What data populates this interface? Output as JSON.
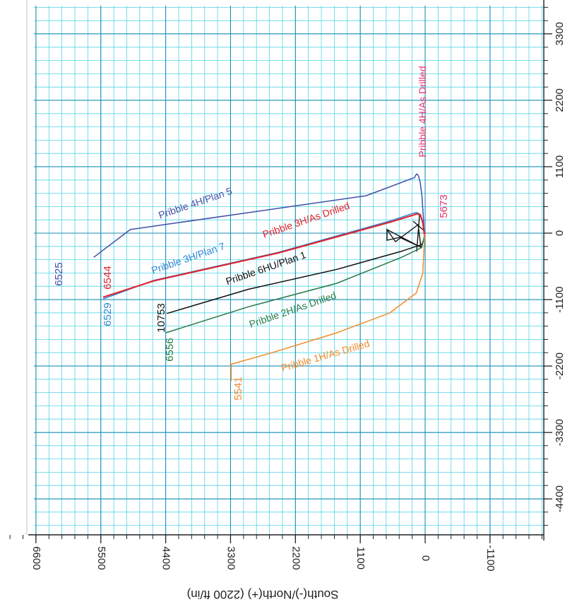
{
  "chart_data": {
    "type": "line",
    "title": "",
    "xlabel": "",
    "ylabel": "South(-)/North(+) (2200 ft/in)",
    "orientation": "rotated",
    "grid": true,
    "colors": {
      "grid_minor": "#54d3e6",
      "grid_major": "#1a8fb7",
      "axis": "#222222"
    },
    "right_axis": {
      "ticks": [
        3300,
        2200,
        1100,
        0,
        -1100,
        -2200,
        -3300,
        -4400
      ]
    },
    "bottom_axis": {
      "ticks": [
        6600,
        5500,
        4400,
        3300,
        2200,
        1100,
        0,
        -1100
      ]
    },
    "series": [
      {
        "name": "Pribble 4H/Plan 5",
        "color": "#3f4fa8",
        "points": [
          [
            6,
            -40
          ],
          [
            14,
            -10
          ],
          [
            30,
            250
          ],
          [
            55,
            620
          ],
          [
            85,
            850
          ],
          [
            115,
            950
          ],
          [
            140,
            980
          ],
          [
            160,
            960
          ],
          [
            180,
            920
          ],
          [
            1000,
            620
          ],
          [
            5000,
            60
          ],
          [
            5620,
            -400
          ]
        ]
      },
      {
        "name": "Pribble 3H/Plan 7",
        "color": "#2f86d2",
        "points": [
          [
            8,
            -40
          ],
          [
            16,
            -10
          ],
          [
            40,
            150
          ],
          [
            80,
            310
          ],
          [
            140,
            340
          ],
          [
            200,
            330
          ],
          [
            600,
            200
          ],
          [
            2500,
            -320
          ],
          [
            4600,
            -780
          ],
          [
            5460,
            -1090
          ]
        ]
      },
      {
        "name": "Pribble 3H/As Drilled",
        "color": "#e0242e",
        "points": [
          [
            8,
            -40
          ],
          [
            16,
            -10
          ],
          [
            38,
            170
          ],
          [
            80,
            300
          ],
          [
            140,
            320
          ],
          [
            200,
            300
          ],
          [
            600,
            180
          ],
          [
            2500,
            -330
          ],
          [
            4600,
            -790
          ],
          [
            5460,
            -1060
          ]
        ]
      },
      {
        "name": "Pribble 6HU/Plan 1",
        "color": "#111111",
        "points": [
          [
            10,
            -30
          ],
          [
            22,
            -110
          ],
          [
            60,
            -190
          ],
          [
            400,
            -300
          ],
          [
            1500,
            -600
          ],
          [
            3000,
            -930
          ],
          [
            4380,
            -1330
          ]
        ]
      },
      {
        "name": "Pribble 2H/As Drilled",
        "color": "#237a48",
        "points": [
          [
            8,
            -30
          ],
          [
            14,
            -60
          ],
          [
            60,
            -240
          ],
          [
            400,
            -400
          ],
          [
            1500,
            -830
          ],
          [
            3000,
            -1220
          ],
          [
            4400,
            -1650
          ]
        ]
      },
      {
        "name": "Pribble 1H/As Drilled",
        "color": "#f38a2a",
        "points": [
          [
            4,
            -10
          ],
          [
            10,
            -60
          ],
          [
            40,
            -660
          ],
          [
            150,
            -990
          ],
          [
            600,
            -1320
          ],
          [
            1500,
            -1650
          ],
          [
            2600,
            -1980
          ],
          [
            3290,
            -2170
          ],
          [
            3290,
            -2450
          ]
        ]
      },
      {
        "name": "Pribble 4H/As Drilled",
        "color": "#e6356b",
        "points": [
          [
            0,
            20
          ],
          [
            0,
            -10
          ]
        ]
      }
    ],
    "annotations": [
      {
        "text": "6525",
        "color": "#3f4fa8"
      },
      {
        "text": "6544",
        "color": "#e0242e"
      },
      {
        "text": "6529",
        "color": "#2f86d2"
      },
      {
        "text": "10753",
        "color": "#111111"
      },
      {
        "text": "6556",
        "color": "#237a48"
      },
      {
        "text": "5541",
        "color": "#f38a2a"
      },
      {
        "text": "5673",
        "color": "#e6356b"
      }
    ]
  }
}
